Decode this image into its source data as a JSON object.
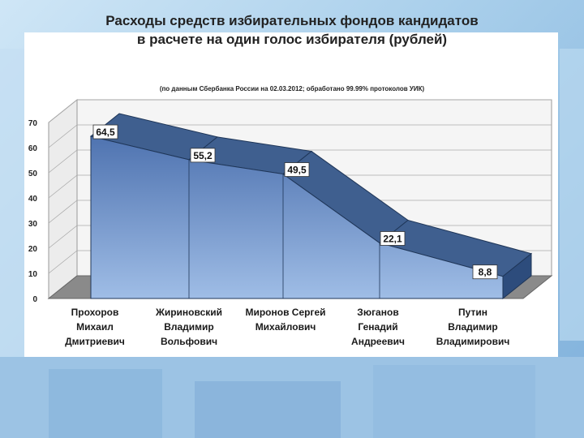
{
  "chart_data": {
    "type": "area",
    "title_line1": "Расходы средств избирательных фондов кандидатов",
    "title_line2": "в расчете на один голос избирателя (рублей)",
    "subtitle": "(по данным Сбербанка России на 02.03.2012; обработано 99.99% протоколов УИК)",
    "categories": [
      [
        "Прохоров",
        "Михаил",
        "Дмитриевич"
      ],
      [
        "Жириновский",
        "Владимир",
        "Вольфович"
      ],
      [
        "Миронов Сергей",
        "Михайлович",
        ""
      ],
      [
        "Зюганов",
        "Генадий",
        "Андреевич"
      ],
      [
        "Путин",
        "Владимир",
        "Владимирович"
      ]
    ],
    "values": [
      64.5,
      55.2,
      49.5,
      22.1,
      8.8
    ],
    "value_labels": [
      "64,5",
      "55,2",
      "49,5",
      "22,1",
      "8,8"
    ],
    "y_ticks": [
      "0",
      "10",
      "20",
      "30",
      "40",
      "50",
      "60",
      "70"
    ],
    "ylim": [
      0,
      70
    ],
    "grid": true,
    "colors": {
      "front": "#5f86c6",
      "top": "#3f5f8f",
      "side": "#2d4c7c",
      "floor": "#8a8a8a"
    }
  }
}
